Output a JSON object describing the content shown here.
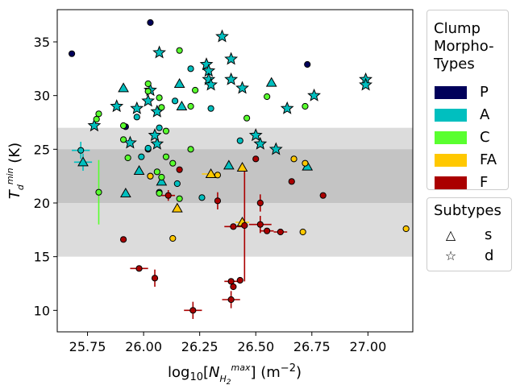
{
  "chart_data": {
    "type": "scatter",
    "xlabel": "log10[N_H2^max] (m^-2)",
    "ylabel": "T_d^min (K)",
    "xlim": [
      25.615,
      27.2
    ],
    "ylim": [
      8,
      38
    ],
    "xticks": [
      "25.75",
      "26.00",
      "26.25",
      "26.50",
      "26.75",
      "27.00"
    ],
    "xtick_values": [
      25.75,
      26.0,
      26.25,
      26.5,
      26.75,
      27.0
    ],
    "yticks": [
      "10",
      "15",
      "20",
      "25",
      "30",
      "35"
    ],
    "ytick_values": [
      10,
      15,
      20,
      25,
      30,
      35
    ],
    "bands": [
      {
        "y0": 15,
        "y1": 27,
        "color": "#dcdcdc"
      },
      {
        "y0": 20,
        "y1": 25,
        "color": "#c4c4c4"
      }
    ],
    "type_colors": {
      "P": "#00005a",
      "A": "#00bfbf",
      "C": "#59ff2f",
      "FA": "#ffc800",
      "F": "#aa0000"
    },
    "points": [
      {
        "x": 25.68,
        "y": 33.9,
        "t": "P",
        "m": "o"
      },
      {
        "x": 26.03,
        "y": 36.8,
        "t": "P",
        "m": "o"
      },
      {
        "x": 26.73,
        "y": 32.9,
        "t": "P",
        "m": "o"
      },
      {
        "x": 25.92,
        "y": 27.1,
        "t": "P",
        "m": "o"
      },
      {
        "x": 26.02,
        "y": 25.0,
        "t": "P",
        "m": "o"
      },
      {
        "x": 26.35,
        "y": 35.5,
        "t": "A",
        "m": "*"
      },
      {
        "x": 26.07,
        "y": 34.0,
        "t": "A",
        "m": "*"
      },
      {
        "x": 26.39,
        "y": 33.4,
        "t": "A",
        "m": "*"
      },
      {
        "x": 26.28,
        "y": 32.9,
        "t": "A",
        "m": "*"
      },
      {
        "x": 26.29,
        "y": 32.3,
        "t": "A",
        "m": "*"
      },
      {
        "x": 26.29,
        "y": 31.5,
        "t": "A",
        "m": "*"
      },
      {
        "x": 26.3,
        "y": 31.0,
        "t": "A",
        "m": "*"
      },
      {
        "x": 26.39,
        "y": 31.5,
        "t": "A",
        "m": "*"
      },
      {
        "x": 26.99,
        "y": 31.5,
        "t": "A",
        "m": "*"
      },
      {
        "x": 26.99,
        "y": 31.0,
        "t": "A",
        "m": "*"
      },
      {
        "x": 26.44,
        "y": 30.7,
        "t": "A",
        "m": "*"
      },
      {
        "x": 26.03,
        "y": 30.5,
        "t": "A",
        "m": "*"
      },
      {
        "x": 26.76,
        "y": 30.0,
        "t": "A",
        "m": "*"
      },
      {
        "x": 25.88,
        "y": 29.0,
        "t": "A",
        "m": "*"
      },
      {
        "x": 25.97,
        "y": 28.8,
        "t": "A",
        "m": "*"
      },
      {
        "x": 26.06,
        "y": 28.5,
        "t": "A",
        "m": "*"
      },
      {
        "x": 26.64,
        "y": 28.8,
        "t": "A",
        "m": "*"
      },
      {
        "x": 25.78,
        "y": 27.2,
        "t": "A",
        "m": "*"
      },
      {
        "x": 26.02,
        "y": 29.5,
        "t": "A",
        "m": "*"
      },
      {
        "x": 26.5,
        "y": 26.3,
        "t": "A",
        "m": "*"
      },
      {
        "x": 26.52,
        "y": 25.5,
        "t": "A",
        "m": "*"
      },
      {
        "x": 25.94,
        "y": 25.6,
        "t": "A",
        "m": "*"
      },
      {
        "x": 26.06,
        "y": 25.5,
        "t": "A",
        "m": "*"
      },
      {
        "x": 26.59,
        "y": 25.0,
        "t": "A",
        "m": "*"
      },
      {
        "x": 26.05,
        "y": 26.3,
        "t": "A",
        "m": "*"
      },
      {
        "x": 25.91,
        "y": 30.7,
        "t": "A",
        "m": "^"
      },
      {
        "x": 26.16,
        "y": 31.1,
        "t": "A",
        "m": "^"
      },
      {
        "x": 26.57,
        "y": 31.2,
        "t": "A",
        "m": "^"
      },
      {
        "x": 26.17,
        "y": 29.0,
        "t": "A",
        "m": "^"
      },
      {
        "x": 26.38,
        "y": 23.5,
        "t": "A",
        "m": "^"
      },
      {
        "x": 26.73,
        "y": 23.4,
        "t": "A",
        "m": "^"
      },
      {
        "x": 25.98,
        "y": 23.0,
        "t": "A",
        "m": "^"
      },
      {
        "x": 26.08,
        "y": 22.0,
        "t": "A",
        "m": "^"
      },
      {
        "x": 25.92,
        "y": 20.9,
        "t": "A",
        "m": "^"
      },
      {
        "x": 25.73,
        "y": 23.8,
        "t": "A",
        "m": "^",
        "xerr": 0.04,
        "yerr": 0.8
      },
      {
        "x": 25.72,
        "y": 24.9,
        "t": "A",
        "m": "o",
        "xerr": 0.04,
        "yerr": 0.8
      },
      {
        "x": 26.21,
        "y": 32.5,
        "t": "A",
        "m": "o"
      },
      {
        "x": 26.3,
        "y": 28.8,
        "t": "A",
        "m": "o"
      },
      {
        "x": 25.97,
        "y": 28.0,
        "t": "A",
        "m": "o"
      },
      {
        "x": 26.14,
        "y": 29.5,
        "t": "A",
        "m": "o"
      },
      {
        "x": 26.07,
        "y": 27.0,
        "t": "A",
        "m": "o"
      },
      {
        "x": 26.43,
        "y": 25.8,
        "t": "A",
        "m": "o"
      },
      {
        "x": 25.99,
        "y": 24.3,
        "t": "A",
        "m": "o"
      },
      {
        "x": 26.15,
        "y": 21.8,
        "t": "A",
        "m": "o"
      },
      {
        "x": 26.26,
        "y": 20.5,
        "t": "A",
        "m": "o"
      },
      {
        "x": 26.07,
        "y": 21.0,
        "t": "A",
        "m": "o"
      },
      {
        "x": 26.02,
        "y": 25.1,
        "t": "A",
        "m": "o"
      },
      {
        "x": 26.16,
        "y": 34.2,
        "t": "C",
        "m": "o"
      },
      {
        "x": 26.02,
        "y": 31.1,
        "t": "C",
        "m": "o"
      },
      {
        "x": 26.02,
        "y": 30.4,
        "t": "C",
        "m": "o"
      },
      {
        "x": 26.07,
        "y": 29.8,
        "t": "C",
        "m": "o"
      },
      {
        "x": 26.08,
        "y": 28.9,
        "t": "C",
        "m": "o"
      },
      {
        "x": 26.21,
        "y": 29.0,
        "t": "C",
        "m": "o"
      },
      {
        "x": 25.8,
        "y": 28.3,
        "t": "C",
        "m": "o"
      },
      {
        "x": 25.79,
        "y": 27.8,
        "t": "C",
        "m": "o"
      },
      {
        "x": 25.91,
        "y": 27.2,
        "t": "C",
        "m": "o"
      },
      {
        "x": 26.1,
        "y": 26.7,
        "t": "C",
        "m": "o"
      },
      {
        "x": 26.46,
        "y": 27.9,
        "t": "C",
        "m": "o"
      },
      {
        "x": 26.55,
        "y": 29.9,
        "t": "C",
        "m": "o"
      },
      {
        "x": 26.72,
        "y": 29.0,
        "t": "C",
        "m": "o"
      },
      {
        "x": 25.91,
        "y": 25.9,
        "t": "C",
        "m": "o"
      },
      {
        "x": 26.21,
        "y": 25.0,
        "t": "C",
        "m": "o"
      },
      {
        "x": 26.1,
        "y": 24.3,
        "t": "C",
        "m": "o"
      },
      {
        "x": 26.13,
        "y": 23.7,
        "t": "C",
        "m": "o"
      },
      {
        "x": 26.06,
        "y": 22.9,
        "t": "C",
        "m": "o"
      },
      {
        "x": 26.03,
        "y": 22.5,
        "t": "C",
        "m": "o"
      },
      {
        "x": 26.08,
        "y": 22.4,
        "t": "C",
        "m": "o"
      },
      {
        "x": 26.07,
        "y": 20.9,
        "t": "C",
        "m": "o"
      },
      {
        "x": 26.16,
        "y": 20.4,
        "t": "C",
        "m": "o"
      },
      {
        "x": 25.8,
        "y": 21.0,
        "t": "C",
        "m": "o",
        "yerr": 3.0
      },
      {
        "x": 25.93,
        "y": 24.2,
        "t": "C",
        "m": "o"
      },
      {
        "x": 26.23,
        "y": 30.5,
        "t": "C",
        "m": "o"
      },
      {
        "x": 26.15,
        "y": 19.5,
        "t": "FA",
        "m": "^"
      },
      {
        "x": 26.3,
        "y": 22.7,
        "t": "FA",
        "m": "^",
        "xerr": 0.04
      },
      {
        "x": 26.44,
        "y": 23.3,
        "t": "FA",
        "m": "^"
      },
      {
        "x": 26.44,
        "y": 18.2,
        "t": "FA",
        "m": "^",
        "xerr": 0.03
      },
      {
        "x": 26.03,
        "y": 22.5,
        "t": "FA",
        "m": "o"
      },
      {
        "x": 26.67,
        "y": 24.1,
        "t": "FA",
        "m": "o"
      },
      {
        "x": 26.72,
        "y": 23.7,
        "t": "FA",
        "m": "o"
      },
      {
        "x": 26.33,
        "y": 22.6,
        "t": "FA",
        "m": "o"
      },
      {
        "x": 26.13,
        "y": 16.7,
        "t": "FA",
        "m": "o"
      },
      {
        "x": 26.71,
        "y": 17.3,
        "t": "FA",
        "m": "o"
      },
      {
        "x": 27.17,
        "y": 17.6,
        "t": "FA",
        "m": "o"
      },
      {
        "x": 26.16,
        "y": 23.1,
        "t": "F",
        "m": "o"
      },
      {
        "x": 26.11,
        "y": 20.7,
        "t": "F",
        "m": "o",
        "xerr": 0.03,
        "yerr": 0.5
      },
      {
        "x": 26.33,
        "y": 20.2,
        "t": "F",
        "m": "o",
        "yerr": 0.8
      },
      {
        "x": 26.5,
        "y": 24.1,
        "t": "F",
        "m": "o"
      },
      {
        "x": 26.66,
        "y": 22.0,
        "t": "F",
        "m": "o"
      },
      {
        "x": 26.8,
        "y": 20.7,
        "t": "F",
        "m": "o"
      },
      {
        "x": 26.52,
        "y": 20.0,
        "t": "F",
        "m": "o",
        "yerr": 0.8
      },
      {
        "x": 26.52,
        "y": 18.0,
        "t": "F",
        "m": "o",
        "xerr": 0.05,
        "yerr": 0.8
      },
      {
        "x": 26.4,
        "y": 17.8,
        "t": "F",
        "m": "o",
        "xerr": 0.04
      },
      {
        "x": 26.45,
        "y": 17.9,
        "t": "F",
        "m": "o",
        "yerr": 5.2
      },
      {
        "x": 26.55,
        "y": 17.4,
        "t": "F",
        "m": "o",
        "xerr": 0.03
      },
      {
        "x": 26.61,
        "y": 17.3,
        "t": "F",
        "m": "o",
        "xerr": 0.03
      },
      {
        "x": 25.91,
        "y": 16.6,
        "t": "F",
        "m": "o"
      },
      {
        "x": 25.98,
        "y": 13.9,
        "t": "F",
        "m": "o",
        "xerr": 0.04
      },
      {
        "x": 26.05,
        "y": 13.0,
        "t": "F",
        "m": "o",
        "yerr": 0.8
      },
      {
        "x": 26.39,
        "y": 12.7,
        "t": "F",
        "m": "o",
        "xerr": 0.03
      },
      {
        "x": 26.43,
        "y": 12.8,
        "t": "F",
        "m": "o"
      },
      {
        "x": 26.4,
        "y": 12.2,
        "t": "F",
        "m": "o"
      },
      {
        "x": 26.39,
        "y": 11.0,
        "t": "F",
        "m": "o",
        "xerr": 0.04,
        "yerr": 0.8
      },
      {
        "x": 26.22,
        "y": 10.0,
        "t": "F",
        "m": "o",
        "xerr": 0.04,
        "yerr": 0.8
      }
    ]
  },
  "legend": {
    "title_line1": "Clump",
    "title_line2": "Morpho-",
    "title_line3": "Types",
    "items": [
      {
        "label": "P",
        "color": "#00005a"
      },
      {
        "label": "A",
        "color": "#00bfbf"
      },
      {
        "label": "C",
        "color": "#59ff2f"
      },
      {
        "label": "FA",
        "color": "#ffc800"
      },
      {
        "label": "F",
        "color": "#aa0000"
      }
    ]
  },
  "subtypes": {
    "title": "Subtypes",
    "items": [
      {
        "label": "s",
        "symbol": "△"
      },
      {
        "label": "d",
        "symbol": "☆"
      }
    ]
  }
}
